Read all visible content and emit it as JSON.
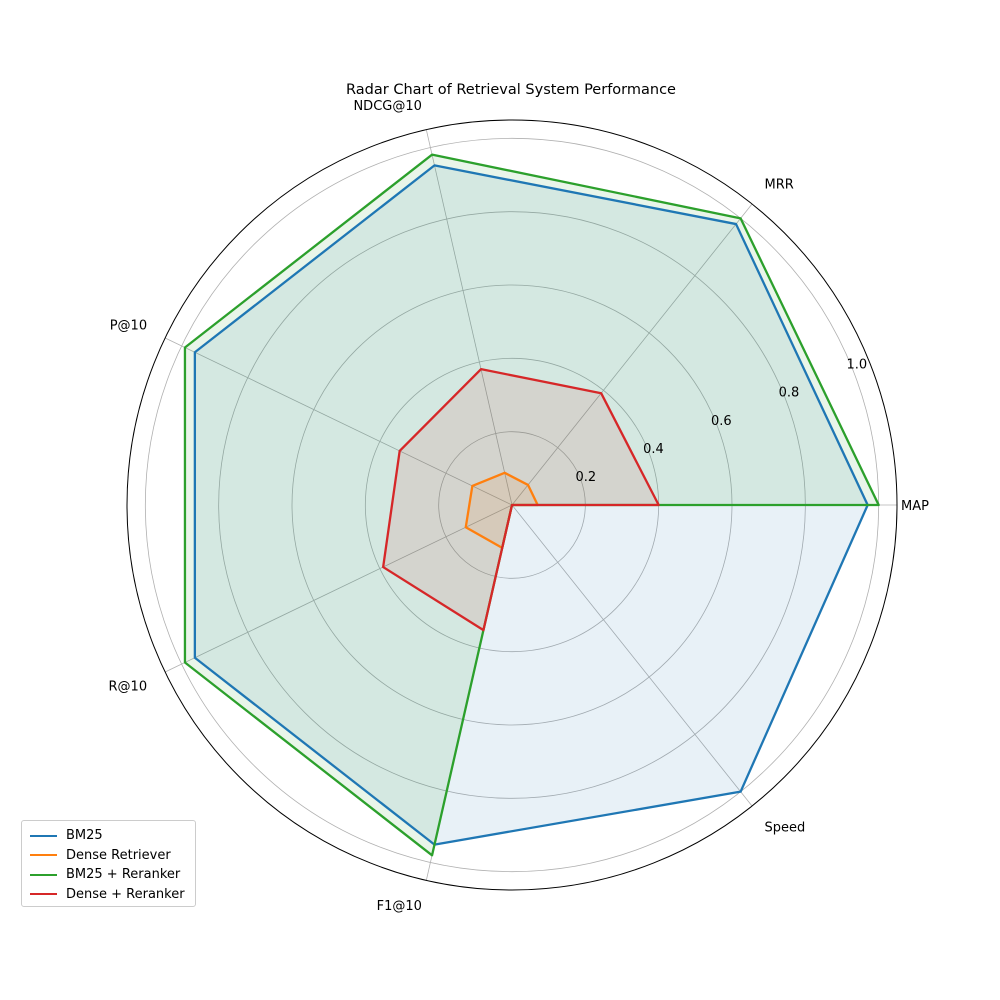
{
  "chart_data": {
    "type": "radar",
    "title": "Radar Chart of Retrieval System Performance",
    "axes": [
      "MAP",
      "MRR",
      "NDCG@10",
      "P@10",
      "R@10",
      "F1@10",
      "Speed"
    ],
    "rlim": [
      0,
      1.05
    ],
    "r_ticks": [
      0.2,
      0.4,
      0.6,
      0.8,
      1.0
    ],
    "r_tick_labels": [
      "0.2",
      "0.4",
      "0.6",
      "0.8",
      "1.0"
    ],
    "grid": true,
    "legend_position": "lower-left",
    "series": [
      {
        "name": "BM25",
        "color": "#1f77b4",
        "values": [
          0.97,
          0.98,
          0.95,
          0.96,
          0.96,
          0.95,
          1.0
        ]
      },
      {
        "name": "Dense Retriever",
        "color": "#ff7f0e",
        "values": [
          0.07,
          0.07,
          0.09,
          0.12,
          0.14,
          0.12,
          0.0
        ]
      },
      {
        "name": "BM25 + Reranker",
        "color": "#2ca02c",
        "values": [
          1.0,
          1.0,
          0.98,
          0.99,
          0.99,
          0.98,
          0.0
        ]
      },
      {
        "name": "Dense + Reranker",
        "color": "#d62728",
        "values": [
          0.4,
          0.39,
          0.38,
          0.34,
          0.39,
          0.35,
          0.0
        ]
      }
    ]
  }
}
